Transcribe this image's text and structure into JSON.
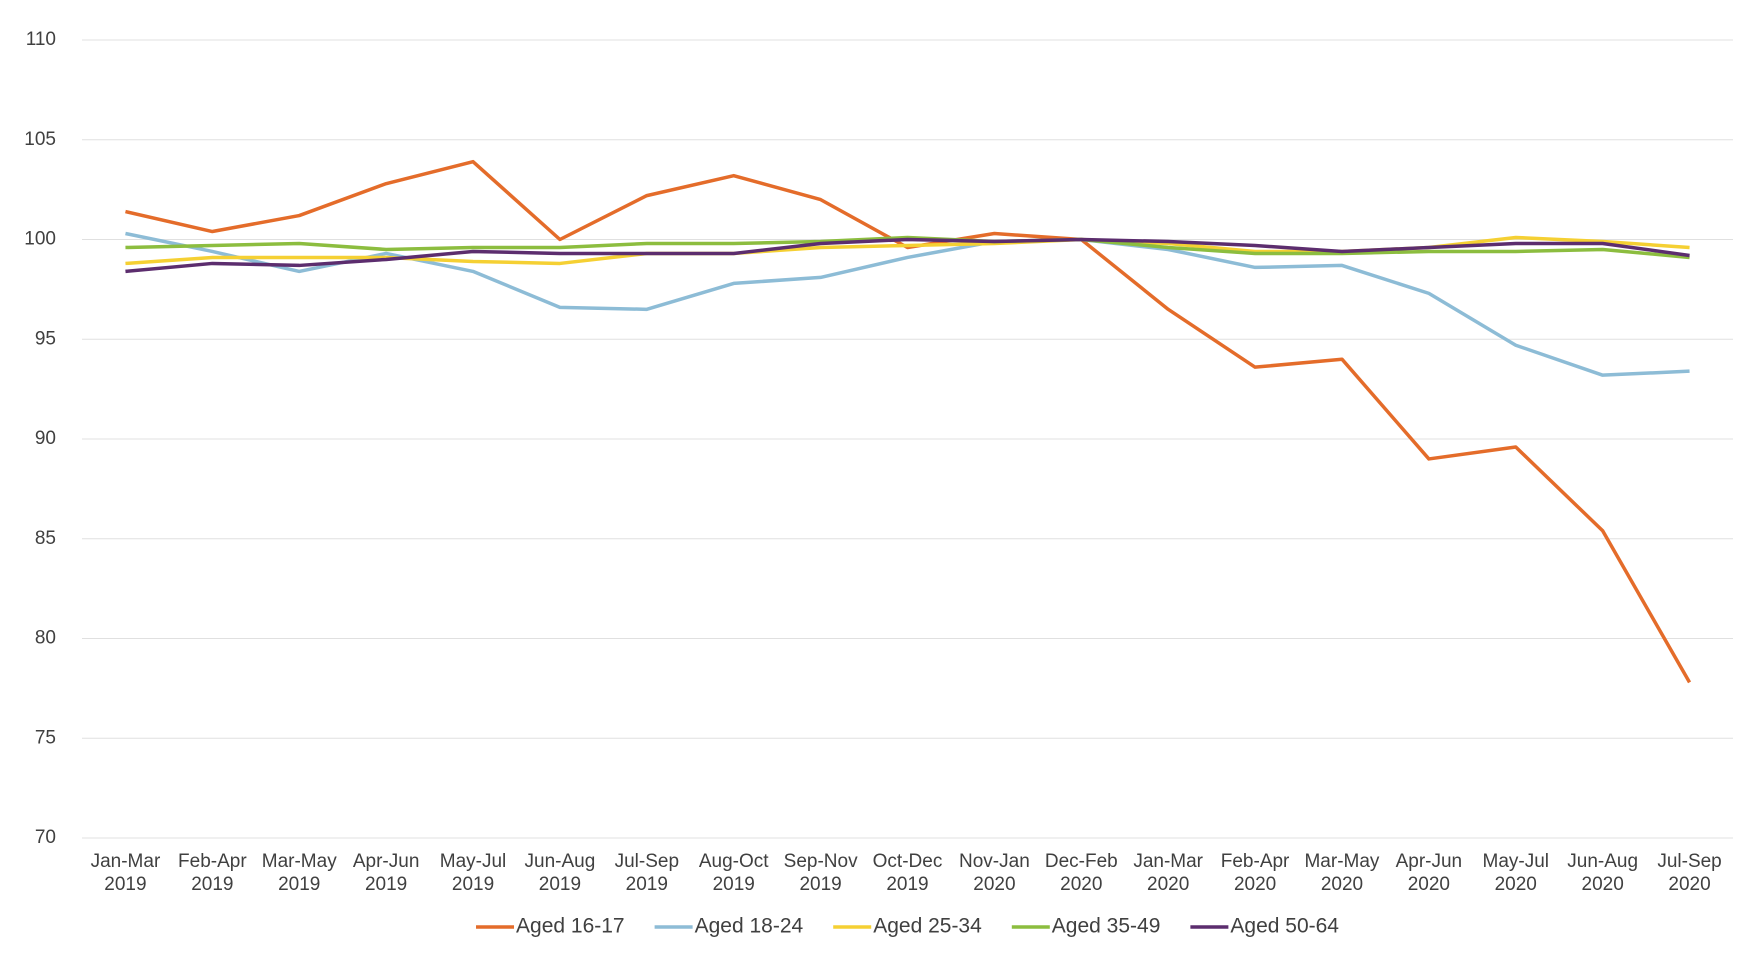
{
  "chart_data": {
    "type": "line",
    "categories": [
      [
        "Jan-Mar",
        "2019"
      ],
      [
        "Feb-Apr",
        "2019"
      ],
      [
        "Mar-May",
        "2019"
      ],
      [
        "Apr-Jun",
        "2019"
      ],
      [
        "May-Jul",
        "2019"
      ],
      [
        "Jun-Aug",
        "2019"
      ],
      [
        "Jul-Sep",
        "2019"
      ],
      [
        "Aug-Oct",
        "2019"
      ],
      [
        "Sep-Nov",
        "2019"
      ],
      [
        "Oct-Dec",
        "2019"
      ],
      [
        "Nov-Jan",
        "2020"
      ],
      [
        "Dec-Feb",
        "2020"
      ],
      [
        "Jan-Mar",
        "2020"
      ],
      [
        "Feb-Apr",
        "2020"
      ],
      [
        "Mar-May",
        "2020"
      ],
      [
        "Apr-Jun",
        "2020"
      ],
      [
        "May-Jul",
        "2020"
      ],
      [
        "Jun-Aug",
        "2020"
      ],
      [
        "Jul-Sep",
        "2020"
      ]
    ],
    "series": [
      {
        "name": "Aged 16-17",
        "color": "#e46c2a",
        "values": [
          101.4,
          100.4,
          101.2,
          102.8,
          103.9,
          100.0,
          102.2,
          103.2,
          102.0,
          99.6,
          100.3,
          100.0,
          96.5,
          93.6,
          94.0,
          89.0,
          89.6,
          85.4,
          77.8
        ]
      },
      {
        "name": "Aged 18-24",
        "color": "#8dbcd6",
        "values": [
          100.3,
          99.4,
          98.4,
          99.3,
          98.4,
          96.6,
          96.5,
          97.8,
          98.1,
          99.1,
          99.9,
          100.0,
          99.5,
          98.6,
          98.7,
          97.3,
          94.7,
          93.2,
          93.4
        ]
      },
      {
        "name": "Aged 25-34",
        "color": "#f5d033",
        "values": [
          98.8,
          99.1,
          99.1,
          99.1,
          98.9,
          98.8,
          99.3,
          99.3,
          99.6,
          99.7,
          99.8,
          100.0,
          99.8,
          99.4,
          99.4,
          99.6,
          100.1,
          99.9,
          99.6
        ]
      },
      {
        "name": "Aged 35-49",
        "color": "#8cbd3f",
        "values": [
          99.6,
          99.7,
          99.8,
          99.5,
          99.6,
          99.6,
          99.8,
          99.8,
          99.9,
          100.1,
          99.9,
          100.0,
          99.6,
          99.3,
          99.3,
          99.4,
          99.4,
          99.5,
          99.1
        ]
      },
      {
        "name": "Aged 50-64",
        "color": "#5c2d6e",
        "values": [
          98.4,
          98.8,
          98.7,
          99.0,
          99.4,
          99.3,
          99.3,
          99.3,
          99.8,
          100.0,
          99.9,
          100.0,
          99.9,
          99.7,
          99.4,
          99.6,
          99.8,
          99.8,
          99.2
        ]
      }
    ],
    "ylim": [
      70,
      110
    ],
    "yticks": [
      70,
      75,
      80,
      85,
      90,
      95,
      100,
      105,
      110
    ],
    "grid": true,
    "legend": "bottom"
  }
}
